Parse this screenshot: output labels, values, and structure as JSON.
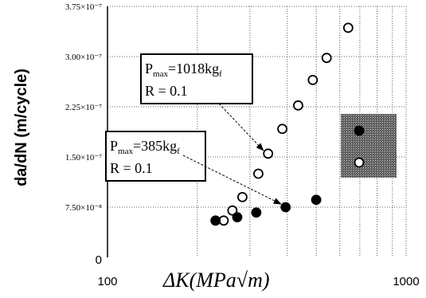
{
  "chart_data": {
    "type": "scatter",
    "xscale": "log",
    "xlim": [
      100,
      1000
    ],
    "ylim": [
      0,
      3.75e-07
    ],
    "x_tick_labels": [
      "100",
      "1000"
    ],
    "y_tick_labels": [
      "0",
      "7.50×10⁻⁸",
      "1.50×10⁻⁷",
      "2.25×10⁻⁷",
      "3.00×10⁻⁷",
      "3.75×10⁻⁷"
    ],
    "y_tick_values": [
      0,
      7.5e-08,
      1.5e-07,
      2.25e-07,
      3e-07,
      3.75e-07
    ],
    "xlabel": "ΔK(MPa√m)",
    "ylabel": "da/dN (m/cycle)",
    "grid": true,
    "series": [
      {
        "marker": "open-circle",
        "points": [
          [
            245,
            5.5e-08
          ],
          [
            262,
            7e-08
          ],
          [
            283,
            9e-08
          ],
          [
            320,
            1.25e-07
          ],
          [
            345,
            1.55e-07
          ],
          [
            385,
            1.92e-07
          ],
          [
            435,
            2.27e-07
          ],
          [
            487,
            2.65e-07
          ],
          [
            542,
            2.98e-07
          ],
          [
            640,
            3.43e-07
          ]
        ]
      },
      {
        "marker": "filled-circle",
        "points": [
          [
            230,
            5.5e-08
          ],
          [
            272,
            6e-08
          ],
          [
            315,
            6.7e-08
          ],
          [
            395,
            7.5e-08
          ],
          [
            500,
            8.6e-08
          ]
        ]
      }
    ],
    "annotations": [
      {
        "main": "P",
        "sub": "max",
        "rest": "=1018kg",
        "unit_sub": "f",
        "line2": "R = 0.1",
        "arrow_to": [
          345,
          1.55e-07
        ]
      },
      {
        "main": "P",
        "sub": "max",
        "rest": "=385kg",
        "unit_sub": "f",
        "line2": "R = 0.1",
        "arrow_to": [
          395,
          7.5e-08
        ]
      }
    ],
    "legend": {
      "position": "right",
      "entries": [
        {
          "marker": "filled-circle",
          "label": ""
        },
        {
          "marker": "open-circle",
          "label": ""
        }
      ]
    }
  }
}
